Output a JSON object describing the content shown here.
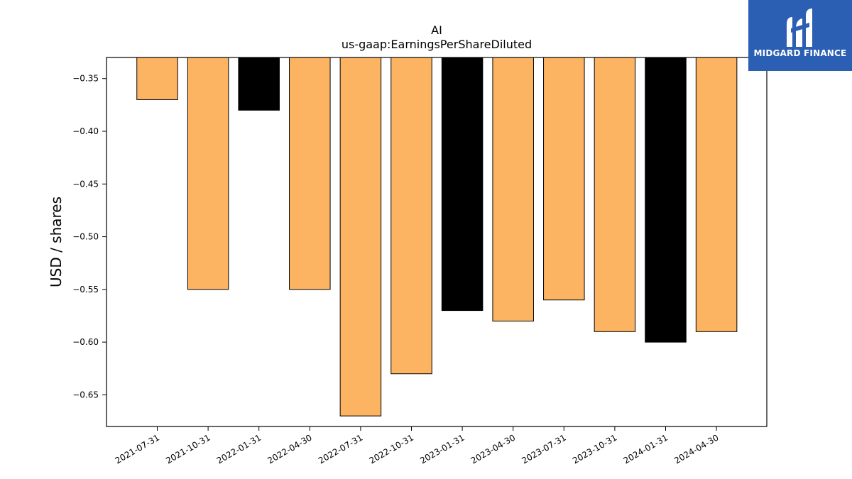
{
  "chart_data": {
    "type": "bar",
    "title": "AI",
    "subtitle": "us-gaap:EarningsPerShareDiluted",
    "xlabel": "",
    "ylabel": "USD / shares",
    "ylim": [
      -0.68,
      -0.33
    ],
    "yticks": [
      -0.35,
      -0.4,
      -0.45,
      -0.5,
      -0.55,
      -0.6,
      -0.65
    ],
    "ytick_labels": [
      "−0.35",
      "−0.40",
      "−0.45",
      "−0.50",
      "−0.55",
      "−0.60",
      "−0.65"
    ],
    "categories": [
      "2021-07-31",
      "2021-10-31",
      "2022-01-31",
      "2022-04-30",
      "2022-07-31",
      "2022-10-31",
      "2023-01-31",
      "2023-04-30",
      "2023-07-31",
      "2023-10-31",
      "2024-01-31",
      "2024-04-30"
    ],
    "values": [
      -0.37,
      -0.55,
      -0.38,
      -0.55,
      -0.67,
      -0.63,
      -0.57,
      -0.58,
      -0.56,
      -0.59,
      -0.6,
      -0.59
    ],
    "bar_colors": [
      "#fdb462",
      "#fdb462",
      "#000000",
      "#fdb462",
      "#fdb462",
      "#fdb462",
      "#000000",
      "#fdb462",
      "#fdb462",
      "#fdb462",
      "#000000",
      "#fdb462"
    ],
    "grid": false,
    "legend": "none"
  },
  "brand": {
    "name": "MIDGARD FINANCE",
    "color": "#2b5fb3"
  }
}
